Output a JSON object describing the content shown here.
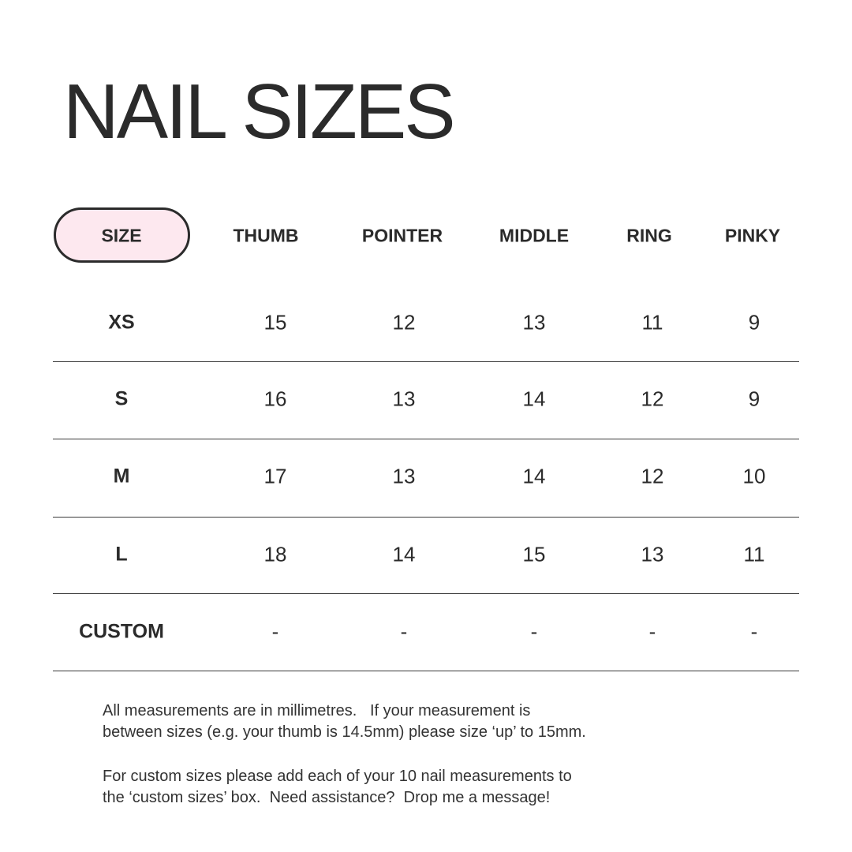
{
  "title": "NAIL SIZES",
  "colors": {
    "pill_fill": "#fde8ef",
    "text": "#2b2b2b"
  },
  "table": {
    "headers": [
      "SIZE",
      "THUMB",
      "POINTER",
      "MIDDLE",
      "RING",
      "PINKY"
    ],
    "rows": [
      {
        "label": "XS",
        "values": [
          "15",
          "12",
          "13",
          "11",
          "9"
        ]
      },
      {
        "label": "S",
        "values": [
          "16",
          "13",
          "14",
          "12",
          "9"
        ]
      },
      {
        "label": "M",
        "values": [
          "17",
          "13",
          "14",
          "12",
          "10"
        ]
      },
      {
        "label": "L",
        "values": [
          "18",
          "14",
          "15",
          "13",
          "11"
        ]
      },
      {
        "label": "CUSTOM",
        "values": [
          "-",
          "-",
          "-",
          "-",
          "-"
        ]
      }
    ]
  },
  "notes": {
    "p1_line1": "All measurements are in millimetres.   If your measurement is",
    "p1_line2": "between sizes (e.g. your thumb is 14.5mm) please size ‘up’ to 15mm.",
    "p2_line1": "For custom sizes please add each of your 10 nail measurements to",
    "p2_line2": "the ‘custom sizes’ box.  Need assistance?  Drop me a message!"
  }
}
